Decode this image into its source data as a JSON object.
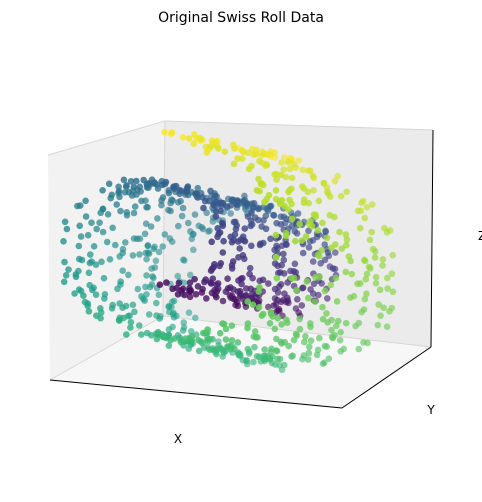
{
  "chart_data": {
    "type": "scatter",
    "projection": "3d",
    "title": "Original Swiss Roll Data",
    "xlabel": "X",
    "ylabel": "Y",
    "zlabel": "Z",
    "grid": false,
    "ticks": false,
    "colormap": "viridis",
    "color_scale_note": "point color encodes position along the roll (t)",
    "point_count_approx": 1000
  },
  "colors": {
    "pane_back": "#ebebeb",
    "pane_side": "#f2f2f2",
    "pane_floor": "#f7f7f7",
    "axis_line": "#000000",
    "viridis_start": "#440154",
    "viridis_mid": "#21918c",
    "viridis_end": "#fde725"
  }
}
